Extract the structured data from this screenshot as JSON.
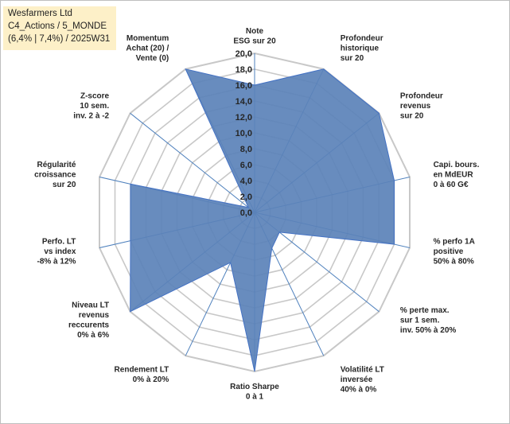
{
  "info": {
    "line1": "Wesfarmers Ltd",
    "line2": "C4_Actions / 5_MONDE",
    "line3": "(6,4% | 7,4%) / 2025W31"
  },
  "colors": {
    "fill": "#5b82b8",
    "stroke": "#4472c4",
    "grid": "#c8c8c8",
    "axis": "#4f81bd",
    "infobox": "#fdf0c8"
  },
  "chart_data": {
    "type": "radar",
    "rmin": 0,
    "rmax": 20,
    "ticks": [
      "0,0",
      "2,0",
      "4,0",
      "6,0",
      "8,0",
      "10,0",
      "12,0",
      "14,0",
      "16,0",
      "18,0",
      "20,0"
    ],
    "grid": true,
    "categories": [
      [
        "Note",
        "ESG sur 20"
      ],
      [
        "Profondeur",
        "historique",
        "sur 20"
      ],
      [
        "Profondeur",
        "revenus",
        "sur 20"
      ],
      [
        "Capi. bours.",
        "en MdEUR",
        "0 à 60 G€"
      ],
      [
        "% perfo 1A",
        "positive",
        "50% à 80%"
      ],
      [
        "% perte max.",
        "sur 1 sem.",
        "inv. 50% à 20%"
      ],
      [
        "Volatilité LT",
        "inversée",
        "40% à 0%"
      ],
      [
        "Ratio Sharpe",
        "0 à 1"
      ],
      [
        "Rendement LT",
        "0% à 20%"
      ],
      [
        "Niveau LT",
        "revenus",
        "reccurents",
        "0% à 6%"
      ],
      [
        "Perfo. LT",
        "vs index",
        "-8% à 12%"
      ],
      [
        "Régularité",
        "croissance",
        "sur 20"
      ],
      [
        "Z-score",
        "10 sem.",
        "inv. 2 à -2"
      ],
      [
        "Momentum",
        "Achat (20) /",
        "Vente (0)"
      ]
    ],
    "values": [
      16.0,
      20.0,
      20.0,
      18.0,
      18.0,
      4.0,
      5.0,
      20.0,
      7.0,
      20.0,
      16.0,
      16.0,
      1.0,
      20.0
    ]
  }
}
